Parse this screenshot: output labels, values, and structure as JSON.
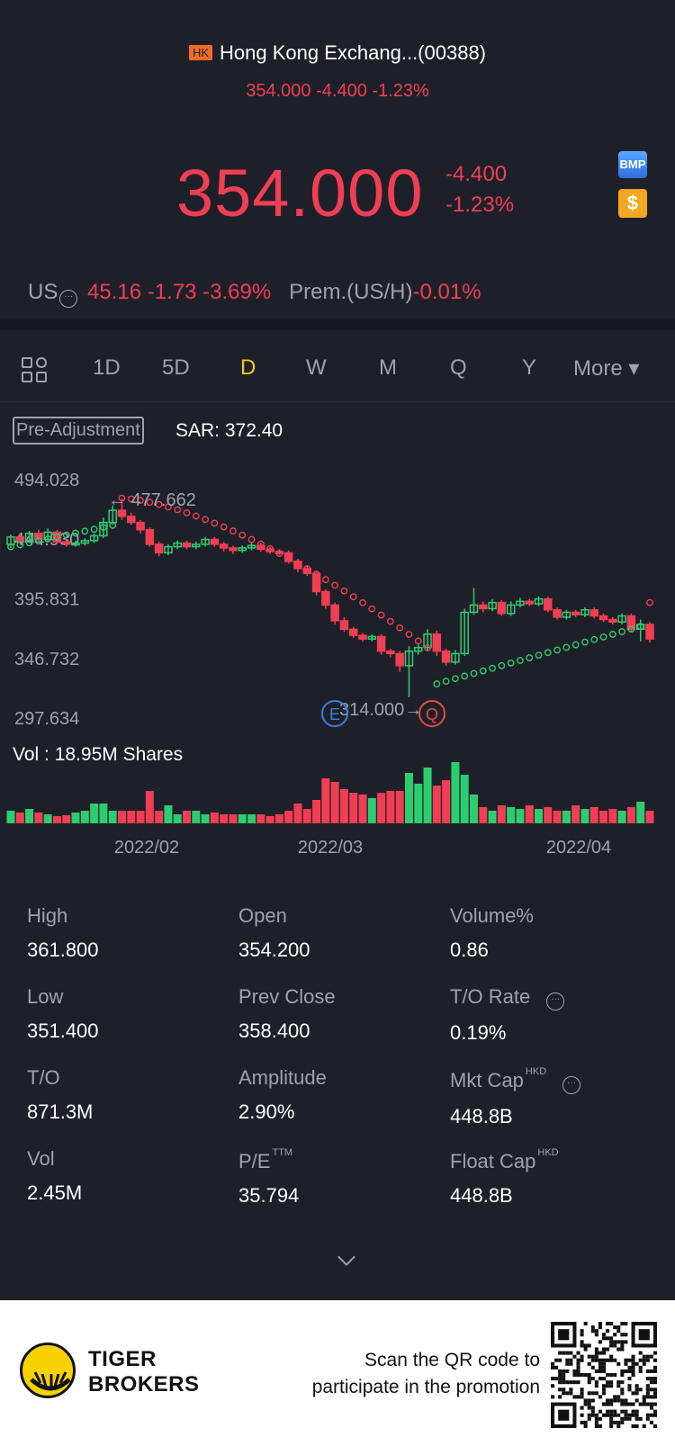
{
  "header": {
    "exchange_badge": "HK",
    "title": "Hong Kong Exchang...(00388)",
    "subtitle": "354.000 -4.400 -1.23%",
    "price": "354.000",
    "change": "-4.400",
    "change_pct": "-1.23%",
    "bmp_label": "BMP",
    "dollar_label": "$"
  },
  "us_row": {
    "label": "US",
    "value": "45.16 -1.73 -3.69%",
    "prem_label": "Prem.(US/H)",
    "prem_value": "-0.01%"
  },
  "tabs": [
    {
      "label": "1D"
    },
    {
      "label": "5D"
    },
    {
      "label": "D",
      "active": true
    },
    {
      "label": "W"
    },
    {
      "label": "M"
    },
    {
      "label": "Q"
    },
    {
      "label": "Y"
    },
    {
      "label": "More ▾"
    }
  ],
  "chart_header": {
    "adjustment": "Pre-Adjustment",
    "indicator": "SAR: 372.40"
  },
  "chart_data": {
    "type": "candlestick",
    "y_ticks": [
      "494.028",
      "444.930",
      "395.831",
      "346.732",
      "297.634"
    ],
    "y_range": [
      297.634,
      494.028
    ],
    "high_annotation": "477.662",
    "low_annotation": "314.000",
    "x_ticks": [
      "2022/02",
      "2022/03",
      "2022/04"
    ],
    "event_markers": [
      "E",
      "Q"
    ],
    "volume_label": "Vol  : 18.95M Shares",
    "colors": {
      "up": "#2ecc71",
      "down": "#f03e55"
    }
  },
  "stats": [
    {
      "label": "High",
      "value": "361.800"
    },
    {
      "label": "Open",
      "value": "354.200"
    },
    {
      "label": "Volume%",
      "value": "0.86"
    },
    {
      "label": "Low",
      "value": "351.400"
    },
    {
      "label": "Prev Close",
      "value": "358.400"
    },
    {
      "label": "T/O Rate",
      "value": "0.19%"
    },
    {
      "label": "T/O",
      "value": "871.3M"
    },
    {
      "label": "Amplitude",
      "value": "2.90%"
    },
    {
      "label": "Mkt Cap",
      "value": "448.8B",
      "sup": "HKD"
    },
    {
      "label": "Vol",
      "value": "2.45M"
    },
    {
      "label": "P/E",
      "value": "35.794",
      "sup": "TTM"
    },
    {
      "label": "Float Cap",
      "value": "448.8B",
      "sup": "HKD"
    }
  ],
  "footer": {
    "brand_line1": "TIGER",
    "brand_line2": "BROKERS",
    "promo_line1": "Scan the QR code to",
    "promo_line2": "participate in the promotion"
  }
}
